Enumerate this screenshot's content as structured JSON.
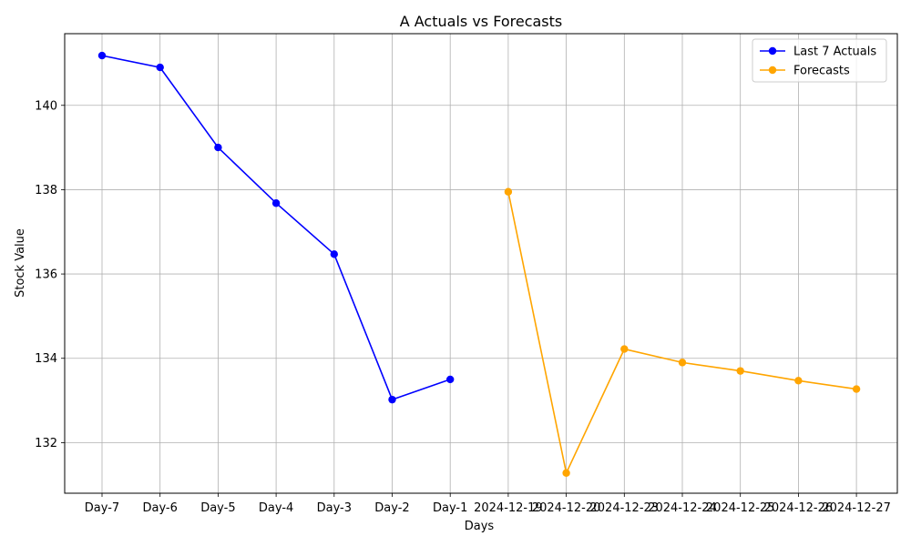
{
  "chart_data": {
    "type": "line",
    "title": "A Actuals vs Forecasts",
    "xlabel": "Days",
    "ylabel": "Stock Value",
    "categories": [
      "Day-7",
      "Day-6",
      "Day-5",
      "Day-4",
      "Day-3",
      "Day-2",
      "Day-1",
      "2024-12-19",
      "2024-12-20",
      "2024-12-23",
      "2024-12-24",
      "2024-12-25",
      "2024-12-26",
      "2024-12-27"
    ],
    "ylim": [
      130.8,
      141.7
    ],
    "yticks": [
      132,
      134,
      136,
      138,
      140
    ],
    "grid": true,
    "legend_position": "upper right",
    "series": [
      {
        "name": "Last 7 Actuals",
        "color": "#0000ff",
        "marker": "circle",
        "points": [
          {
            "x": "Day-7",
            "y": 141.18
          },
          {
            "x": "Day-6",
            "y": 140.9
          },
          {
            "x": "Day-5",
            "y": 139.0
          },
          {
            "x": "Day-4",
            "y": 137.68
          },
          {
            "x": "Day-3",
            "y": 136.47
          },
          {
            "x": "Day-2",
            "y": 133.02
          },
          {
            "x": "Day-1",
            "y": 133.5
          }
        ]
      },
      {
        "name": "Forecasts",
        "color": "#ffa500",
        "marker": "circle",
        "points": [
          {
            "x": "2024-12-19",
            "y": 137.95
          },
          {
            "x": "2024-12-20",
            "y": 131.28
          },
          {
            "x": "2024-12-23",
            "y": 134.22
          },
          {
            "x": "2024-12-24",
            "y": 133.9
          },
          {
            "x": "2024-12-25",
            "y": 133.7
          },
          {
            "x": "2024-12-26",
            "y": 133.47
          },
          {
            "x": "2024-12-27",
            "y": 133.27
          }
        ]
      }
    ]
  }
}
